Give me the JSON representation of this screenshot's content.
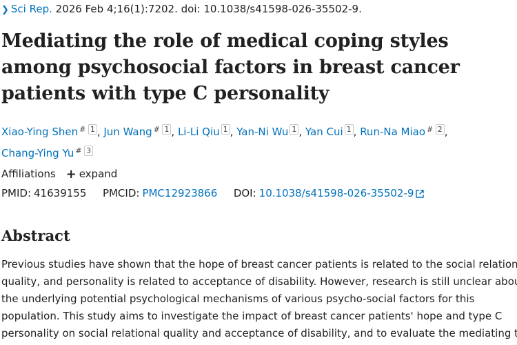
{
  "citation": {
    "journal": "Sci Rep.",
    "details": "2026 Feb 4;16(1):7202. doi: 10.1038/s41598-026-35502-9."
  },
  "article": {
    "title": "Mediating the role of medical coping styles among psychosocial factors in breast cancer patients with type C personality"
  },
  "authors": [
    {
      "name": "Xiao-Ying Shen",
      "equal": "#",
      "aff": "1"
    },
    {
      "name": "Jun Wang",
      "equal": "#",
      "aff": "1"
    },
    {
      "name": "Li-Li Qiu",
      "equal": "",
      "aff": "1"
    },
    {
      "name": "Yan-Ni Wu",
      "equal": "",
      "aff": "1"
    },
    {
      "name": "Yan Cui",
      "equal": "",
      "aff": "1"
    },
    {
      "name": "Run-Na Miao",
      "equal": "#",
      "aff": "2"
    },
    {
      "name": "Chang-Ying Yu",
      "equal": "#",
      "aff": "3"
    }
  ],
  "affiliations": {
    "label": "Affiliations",
    "expand": "expand"
  },
  "identifiers": {
    "pmid_label": "PMID:",
    "pmid": "41639155",
    "pmcid_label": "PMCID:",
    "pmcid": "PMC12923866",
    "doi_label": "DOI:",
    "doi": "10.1038/s41598-026-35502-9"
  },
  "abstract": {
    "heading": "Abstract",
    "lines": [
      "Previous studies have shown that the hope of breast cancer patients is related to the social relational",
      "quality, and personality is related to acceptance of disability. However, research is still unclear about",
      "the underlying potential psychological mechanisms of various psycho-social factors for this",
      "population. This study aims to investigate the impact of breast cancer patients' hope and type C",
      "personality on social relational quality and acceptance of disability, and to evaluate the mediating the"
    ]
  }
}
